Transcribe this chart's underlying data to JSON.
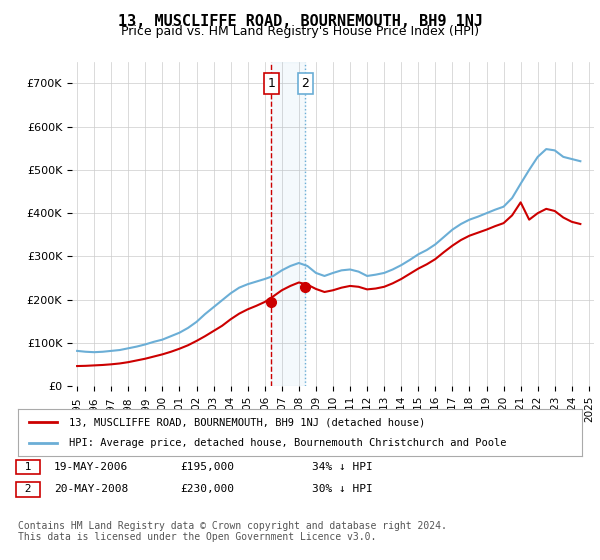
{
  "title": "13, MUSCLIFFE ROAD, BOURNEMOUTH, BH9 1NJ",
  "subtitle": "Price paid vs. HM Land Registry's House Price Index (HPI)",
  "legend_line1": "13, MUSCLIFFE ROAD, BOURNEMOUTH, BH9 1NJ (detached house)",
  "legend_line2": "HPI: Average price, detached house, Bournemouth Christchurch and Poole",
  "transaction1_label": "1",
  "transaction1_date": "19-MAY-2006",
  "transaction1_price": "£195,000",
  "transaction1_hpi": "34% ↓ HPI",
  "transaction2_label": "2",
  "transaction2_date": "20-MAY-2008",
  "transaction2_price": "£230,000",
  "transaction2_hpi": "30% ↓ HPI",
  "footer": "Contains HM Land Registry data © Crown copyright and database right 2024.\nThis data is licensed under the Open Government Licence v3.0.",
  "hpi_color": "#6baed6",
  "price_color": "#cc0000",
  "annotation_color": "#cc0000",
  "vline_color": "#cc0000",
  "vline_color2": "#6baed6",
  "background_color": "#ffffff",
  "grid_color": "#cccccc",
  "ylim": [
    0,
    750000
  ],
  "yticks": [
    0,
    100000,
    200000,
    300000,
    400000,
    500000,
    600000,
    700000
  ],
  "ytick_labels": [
    "£0",
    "£100K",
    "£200K",
    "£300K",
    "£400K",
    "£500K",
    "£600K",
    "£700K"
  ],
  "hpi_years": [
    1995,
    1995.5,
    1996,
    1996.5,
    1997,
    1997.5,
    1998,
    1998.5,
    1999,
    1999.5,
    2000,
    2000.5,
    2001,
    2001.5,
    2002,
    2002.5,
    2003,
    2003.5,
    2004,
    2004.5,
    2005,
    2005.5,
    2006,
    2006.5,
    2007,
    2007.5,
    2008,
    2008.5,
    2009,
    2009.5,
    2010,
    2010.5,
    2011,
    2011.5,
    2012,
    2012.5,
    2013,
    2013.5,
    2014,
    2014.5,
    2015,
    2015.5,
    2016,
    2016.5,
    2017,
    2017.5,
    2018,
    2018.5,
    2019,
    2019.5,
    2020,
    2020.5,
    2021,
    2021.5,
    2022,
    2022.5,
    2023,
    2023.5,
    2024,
    2024.5
  ],
  "hpi_values": [
    82000,
    80000,
    79000,
    80000,
    82000,
    84000,
    88000,
    92000,
    97000,
    103000,
    108000,
    116000,
    124000,
    135000,
    149000,
    167000,
    183000,
    199000,
    215000,
    228000,
    236000,
    242000,
    248000,
    255000,
    268000,
    278000,
    285000,
    278000,
    262000,
    255000,
    262000,
    268000,
    270000,
    265000,
    255000,
    258000,
    262000,
    270000,
    280000,
    292000,
    305000,
    315000,
    328000,
    345000,
    362000,
    375000,
    385000,
    392000,
    400000,
    408000,
    415000,
    435000,
    468000,
    500000,
    530000,
    548000,
    545000,
    530000,
    525000,
    520000
  ],
  "price_years": [
    1995,
    1995.5,
    1996,
    1996.5,
    1997,
    1997.5,
    1998,
    1998.5,
    1999,
    1999.5,
    2000,
    2000.5,
    2001,
    2001.5,
    2002,
    2002.5,
    2003,
    2003.5,
    2004,
    2004.5,
    2005,
    2005.5,
    2006,
    2006.5,
    2007,
    2007.5,
    2008,
    2008.5,
    2009,
    2009.5,
    2010,
    2010.5,
    2011,
    2011.5,
    2012,
    2012.5,
    2013,
    2013.5,
    2014,
    2014.5,
    2015,
    2015.5,
    2016,
    2016.5,
    2017,
    2017.5,
    2018,
    2018.5,
    2019,
    2019.5,
    2020,
    2020.5,
    2021,
    2021.5,
    2022,
    2022.5,
    2023,
    2023.5,
    2024,
    2024.5
  ],
  "price_values": [
    47000,
    47500,
    48500,
    49500,
    51000,
    53000,
    56000,
    60000,
    64000,
    69000,
    74000,
    80000,
    87000,
    95000,
    105000,
    116000,
    128000,
    140000,
    155000,
    168000,
    178000,
    186000,
    195000,
    208000,
    222000,
    232000,
    240000,
    235000,
    225000,
    218000,
    222000,
    228000,
    232000,
    230000,
    224000,
    226000,
    230000,
    238000,
    248000,
    260000,
    272000,
    282000,
    294000,
    310000,
    325000,
    338000,
    348000,
    355000,
    362000,
    370000,
    377000,
    395000,
    425000,
    385000,
    400000,
    410000,
    405000,
    390000,
    380000,
    375000
  ],
  "transaction1_year": 2006.38,
  "transaction2_year": 2008.38,
  "transaction1_value": 195000,
  "transaction2_value": 230000,
  "xtick_years": [
    1995,
    1996,
    1997,
    1998,
    1999,
    2000,
    2001,
    2002,
    2003,
    2004,
    2005,
    2006,
    2007,
    2008,
    2009,
    2010,
    2011,
    2012,
    2013,
    2014,
    2015,
    2016,
    2017,
    2018,
    2019,
    2020,
    2021,
    2022,
    2023,
    2024,
    2025
  ]
}
